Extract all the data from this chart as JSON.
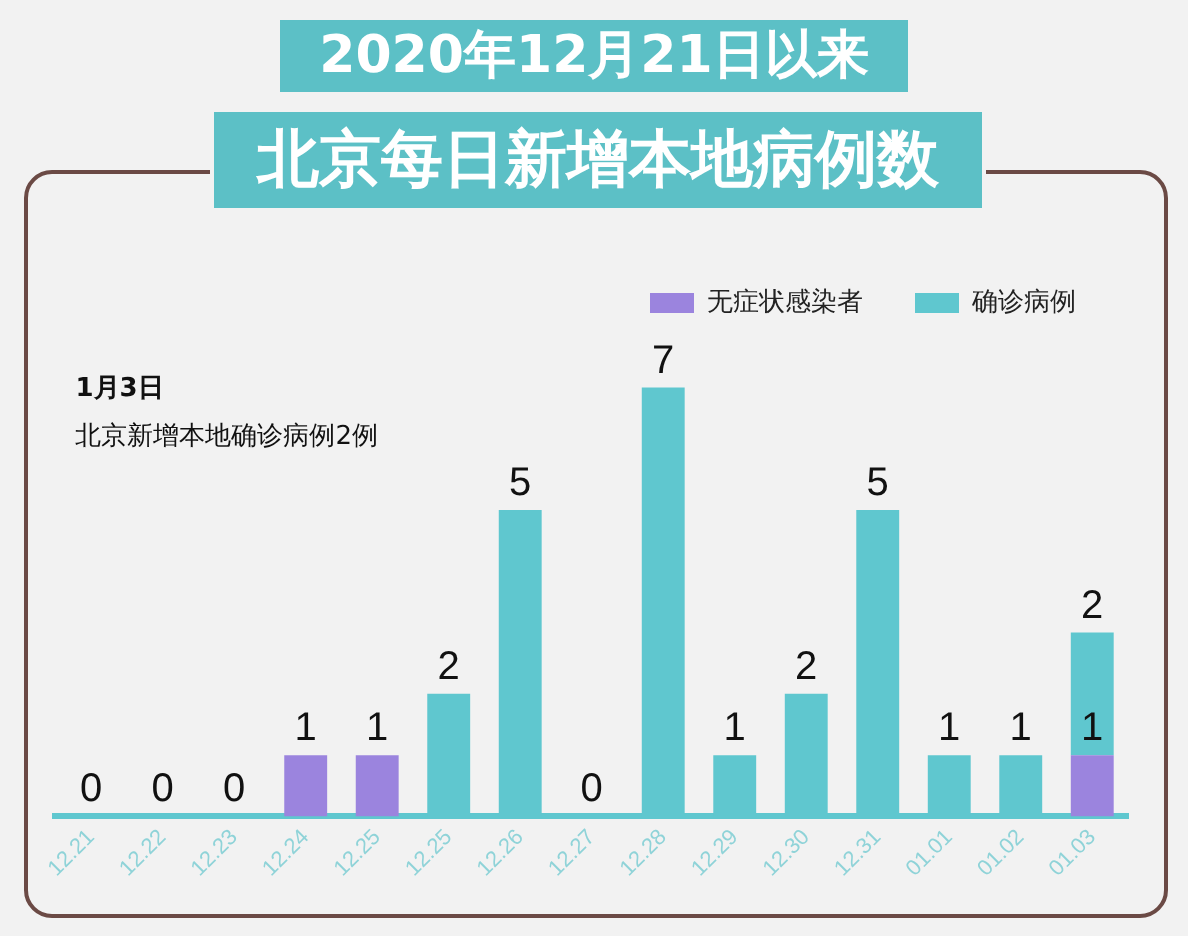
{
  "chart_data": {
    "type": "bar",
    "title": "2020年12月21日以来",
    "subtitle": "北京每日新增本地病例数",
    "categories": [
      "12.21",
      "12.22",
      "12.23",
      "12.24",
      "12.25",
      "12.25",
      "12.26",
      "12.27",
      "12.28",
      "12.29",
      "12.30",
      "12.31",
      "01.01",
      "01.02",
      "01.03"
    ],
    "stacked": true,
    "data_labels": true,
    "legend": "top right",
    "grid": false,
    "tick_labels": "x",
    "series": [
      {
        "name": "无症状感染者",
        "color": "#9b84de",
        "values": [
          0,
          0,
          0,
          1,
          1,
          0,
          0,
          0,
          0,
          0,
          0,
          0,
          0,
          0,
          1
        ],
        "value_labels": [
          "0",
          "0",
          "0",
          "1",
          "1",
          null,
          null,
          null,
          null,
          null,
          null,
          null,
          null,
          null,
          "1"
        ]
      },
      {
        "name": "确诊病例",
        "color": "#5fc7cf",
        "values": [
          0,
          0,
          0,
          0,
          0,
          2,
          5,
          0,
          7,
          1,
          2,
          5,
          1,
          1,
          2
        ],
        "value_labels": [
          null,
          null,
          null,
          null,
          null,
          "2",
          "5",
          "0",
          "7",
          "1",
          "2",
          "5",
          "1",
          "1",
          "2"
        ]
      }
    ],
    "annotations": [
      "1月3日",
      "北京新增本地确诊病例2例"
    ]
  }
}
